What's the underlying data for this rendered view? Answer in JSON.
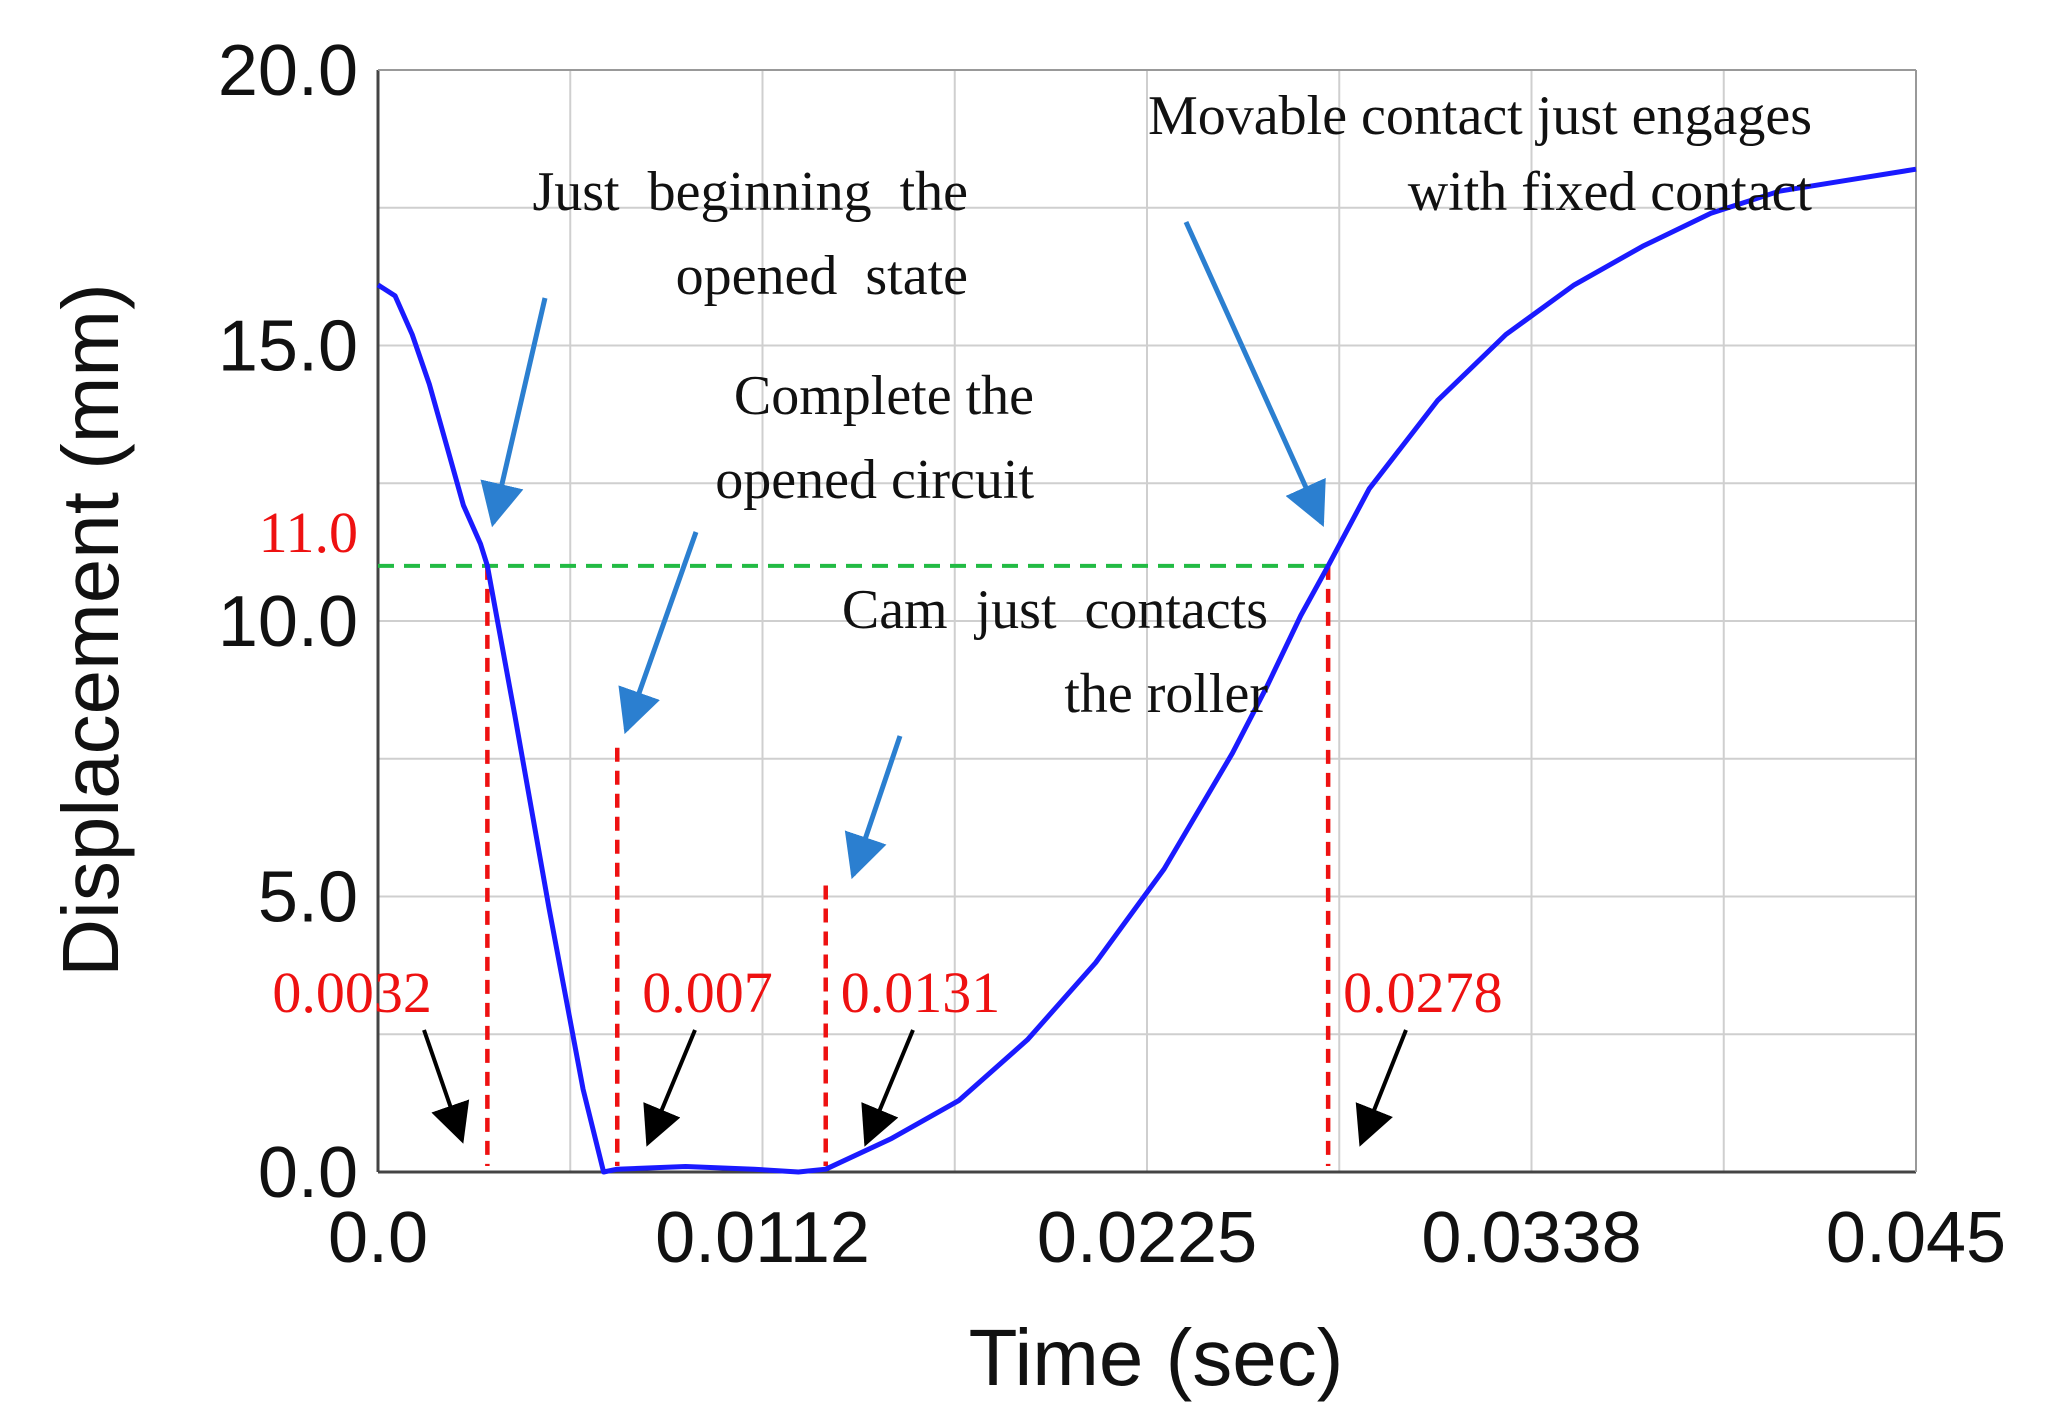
{
  "chart_data": {
    "type": "line",
    "title": "",
    "xlabel": "Time (sec)",
    "ylabel": "Displacement (mm)",
    "xlim": [
      0,
      0.045
    ],
    "ylim": [
      0,
      20
    ],
    "grid": true,
    "x_ticks": [
      0,
      0.01125,
      0.0225,
      0.03375,
      0.045
    ],
    "x_tick_labels": [
      "0.0",
      "0.0112",
      "0.0225",
      "0.0338",
      "0.045"
    ],
    "y_ticks": [
      0,
      5,
      10,
      15,
      20
    ],
    "y_tick_labels": [
      "0.0",
      "5.0",
      "10.0",
      "15.0",
      "20.0"
    ],
    "series": [
      {
        "color": "#1a1aff",
        "x": [
          0,
          0.0005,
          0.001,
          0.0015,
          0.002,
          0.0025,
          0.003,
          0.0032,
          0.004,
          0.005,
          0.006,
          0.0066,
          0.007,
          0.009,
          0.011,
          0.0123,
          0.0131,
          0.015,
          0.017,
          0.019,
          0.021,
          0.023,
          0.025,
          0.026,
          0.027,
          0.0278,
          0.029,
          0.031,
          0.033,
          0.035,
          0.037,
          0.039,
          0.041,
          0.043,
          0.045
        ],
        "y": [
          16.1,
          15.9,
          15.2,
          14.3,
          13.2,
          12.1,
          11.4,
          11.0,
          8.3,
          4.8,
          1.5,
          0.0,
          0.05,
          0.1,
          0.05,
          0.0,
          0.05,
          0.6,
          1.3,
          2.4,
          3.8,
          5.5,
          7.6,
          8.8,
          10.1,
          11.0,
          12.4,
          14.0,
          15.2,
          16.1,
          16.8,
          17.4,
          17.8,
          18.0,
          18.2
        ]
      }
    ],
    "reference_line": {
      "y": 11.0,
      "label": "11.0",
      "color": "#22bb44",
      "style": "dashed"
    },
    "marker_lines": [
      {
        "x": 0.0032,
        "label": "0.0032",
        "color": "#ee1111"
      },
      {
        "x": 0.007,
        "label": "0.007",
        "color": "#ee1111"
      },
      {
        "x": 0.0131,
        "label": "0.0131",
        "color": "#ee1111"
      },
      {
        "x": 0.0278,
        "label": "0.0278",
        "color": "#ee1111"
      }
    ],
    "annotations": [
      {
        "lines": [
          "Just  beginning  the",
          "opened  state"
        ]
      },
      {
        "lines": [
          "Complete the",
          "opened circuit"
        ]
      },
      {
        "lines": [
          "Cam  just  contacts",
          "the roller"
        ]
      },
      {
        "lines": [
          "Movable contact just engages",
          "with fixed contact"
        ]
      }
    ]
  }
}
